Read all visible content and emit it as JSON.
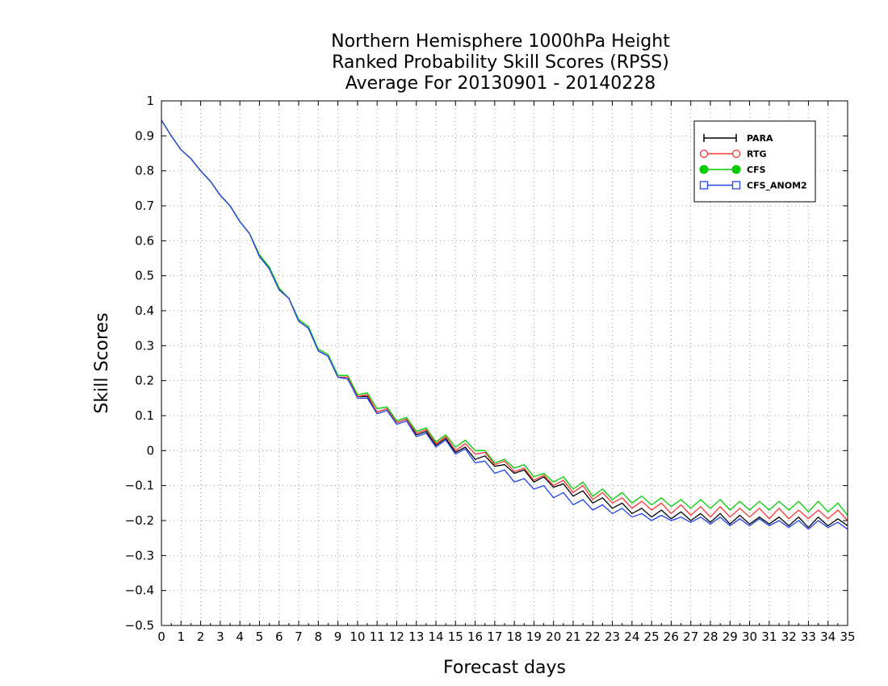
{
  "chart_data": {
    "type": "line",
    "title": [
      "Northern Hemisphere 1000hPa Height",
      "Ranked Probability Skill Scores (RPSS)",
      "Average For 20130901 - 20140228"
    ],
    "xlabel": "Forecast days",
    "ylabel": "Skill Scores",
    "xlim": [
      0,
      35
    ],
    "ylim": [
      -0.5,
      1
    ],
    "x_ticks": [
      0,
      1,
      2,
      3,
      4,
      5,
      6,
      7,
      8,
      9,
      10,
      11,
      12,
      13,
      14,
      15,
      16,
      17,
      18,
      19,
      20,
      21,
      22,
      23,
      24,
      25,
      26,
      27,
      28,
      29,
      30,
      31,
      32,
      33,
      34,
      35
    ],
    "y_ticks": [
      -0.5,
      -0.4,
      -0.3,
      -0.2,
      -0.1,
      0,
      0.1,
      0.2,
      0.3,
      0.4,
      0.5,
      0.6,
      0.7,
      0.8,
      0.9,
      1
    ],
    "y_tick_labels": [
      "−0.5",
      "−0.4",
      "−0.3",
      "−0.2",
      "−0.1",
      "0",
      "0.1",
      "0.2",
      "0.3",
      "0.4",
      "0.5",
      "0.6",
      "0.7",
      "0.8",
      "0.9",
      "1"
    ],
    "grid": true,
    "legend_position": "top-right",
    "x": [
      0,
      0.5,
      1,
      1.5,
      2,
      2.5,
      3,
      3.5,
      4,
      4.5,
      5,
      5.5,
      6,
      6.5,
      7,
      7.5,
      8,
      8.5,
      9,
      9.5,
      10,
      10.5,
      11,
      11.5,
      12,
      12.5,
      13,
      13.5,
      14,
      14.5,
      15,
      15.5,
      16,
      16.5,
      17,
      17.5,
      18,
      18.5,
      19,
      19.5,
      20,
      20.5,
      21,
      21.5,
      22,
      22.5,
      23,
      23.5,
      24,
      24.5,
      25,
      25.5,
      26,
      26.5,
      27,
      27.5,
      28,
      28.5,
      29,
      29.5,
      30,
      30.5,
      31,
      31.5,
      32,
      32.5,
      33,
      33.5,
      34,
      34.5,
      35
    ],
    "series": [
      {
        "name": "PARA",
        "color": "#000000",
        "marker": "plus",
        "values": [
          0.945,
          0.9,
          0.86,
          0.835,
          0.8,
          0.77,
          0.73,
          0.7,
          0.655,
          0.62,
          0.555,
          0.52,
          0.46,
          0.435,
          0.37,
          0.35,
          0.285,
          0.27,
          0.21,
          0.205,
          0.155,
          0.155,
          0.11,
          0.12,
          0.08,
          0.09,
          0.045,
          0.055,
          0.015,
          0.035,
          -0.005,
          0.01,
          -0.025,
          -0.015,
          -0.045,
          -0.04,
          -0.065,
          -0.055,
          -0.09,
          -0.075,
          -0.105,
          -0.095,
          -0.13,
          -0.115,
          -0.15,
          -0.135,
          -0.165,
          -0.15,
          -0.18,
          -0.165,
          -0.19,
          -0.17,
          -0.195,
          -0.175,
          -0.2,
          -0.18,
          -0.205,
          -0.18,
          -0.21,
          -0.185,
          -0.21,
          -0.19,
          -0.21,
          -0.19,
          -0.215,
          -0.19,
          -0.22,
          -0.19,
          -0.215,
          -0.195,
          -0.215
        ]
      },
      {
        "name": "RTG",
        "color": "#ff3333",
        "marker": "circle-open",
        "values": [
          0.945,
          0.9,
          0.86,
          0.835,
          0.8,
          0.77,
          0.73,
          0.7,
          0.655,
          0.62,
          0.555,
          0.52,
          0.46,
          0.435,
          0.37,
          0.35,
          0.285,
          0.27,
          0.21,
          0.21,
          0.155,
          0.16,
          0.11,
          0.12,
          0.08,
          0.09,
          0.05,
          0.06,
          0.02,
          0.04,
          0.0,
          0.02,
          -0.01,
          -0.005,
          -0.04,
          -0.03,
          -0.06,
          -0.05,
          -0.085,
          -0.07,
          -0.1,
          -0.085,
          -0.12,
          -0.1,
          -0.14,
          -0.12,
          -0.15,
          -0.135,
          -0.165,
          -0.145,
          -0.17,
          -0.15,
          -0.18,
          -0.155,
          -0.185,
          -0.16,
          -0.19,
          -0.16,
          -0.19,
          -0.165,
          -0.19,
          -0.165,
          -0.195,
          -0.165,
          -0.195,
          -0.17,
          -0.195,
          -0.17,
          -0.195,
          -0.17,
          -0.2
        ]
      },
      {
        "name": "CFS",
        "color": "#00cc00",
        "marker": "circle-filled",
        "values": [
          0.945,
          0.9,
          0.86,
          0.835,
          0.8,
          0.77,
          0.73,
          0.7,
          0.655,
          0.62,
          0.56,
          0.525,
          0.465,
          0.435,
          0.375,
          0.355,
          0.29,
          0.275,
          0.215,
          0.215,
          0.16,
          0.165,
          0.12,
          0.125,
          0.085,
          0.095,
          0.055,
          0.065,
          0.025,
          0.045,
          0.01,
          0.03,
          0.0,
          0.0,
          -0.035,
          -0.025,
          -0.05,
          -0.04,
          -0.075,
          -0.065,
          -0.09,
          -0.075,
          -0.11,
          -0.09,
          -0.13,
          -0.11,
          -0.14,
          -0.12,
          -0.15,
          -0.13,
          -0.155,
          -0.135,
          -0.16,
          -0.14,
          -0.165,
          -0.14,
          -0.165,
          -0.14,
          -0.17,
          -0.145,
          -0.17,
          -0.145,
          -0.17,
          -0.145,
          -0.17,
          -0.145,
          -0.175,
          -0.145,
          -0.175,
          -0.15,
          -0.185
        ]
      },
      {
        "name": "CFS_ANOM2",
        "color": "#2244ee",
        "marker": "square-open",
        "values": [
          0.945,
          0.9,
          0.86,
          0.835,
          0.8,
          0.77,
          0.73,
          0.7,
          0.655,
          0.62,
          0.555,
          0.52,
          0.46,
          0.435,
          0.37,
          0.35,
          0.285,
          0.27,
          0.21,
          0.205,
          0.15,
          0.15,
          0.105,
          0.115,
          0.075,
          0.085,
          0.04,
          0.05,
          0.01,
          0.03,
          -0.01,
          0.005,
          -0.035,
          -0.03,
          -0.065,
          -0.055,
          -0.09,
          -0.08,
          -0.11,
          -0.1,
          -0.135,
          -0.12,
          -0.155,
          -0.14,
          -0.17,
          -0.155,
          -0.18,
          -0.165,
          -0.19,
          -0.18,
          -0.2,
          -0.185,
          -0.2,
          -0.19,
          -0.205,
          -0.19,
          -0.21,
          -0.19,
          -0.215,
          -0.195,
          -0.215,
          -0.195,
          -0.215,
          -0.2,
          -0.22,
          -0.2,
          -0.225,
          -0.2,
          -0.22,
          -0.205,
          -0.225
        ]
      }
    ]
  }
}
